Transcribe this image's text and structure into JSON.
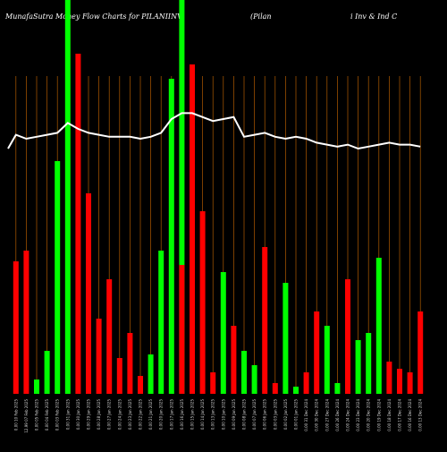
{
  "title_left": "MunafaSutra  Money Flow  Charts for PILANIINV",
  "title_right_1": "(Pilan",
  "title_right_2": "i  Inv   &  Ind  C",
  "colors": {
    "background": "#000000",
    "up": "#00ff00",
    "down": "#ff0000",
    "line": "#ffffff",
    "grid": "#b05a00"
  },
  "chart_data": {
    "type": "bar",
    "series": [
      {
        "values": [
          37,
          40,
          4,
          12,
          65,
          0,
          95,
          56,
          21,
          32,
          10,
          17,
          5,
          11,
          40,
          88,
          36,
          92,
          51,
          6,
          34,
          19,
          12,
          8,
          41,
          3,
          31,
          2,
          6,
          23,
          19,
          3,
          32,
          15,
          17,
          38,
          9,
          7,
          6,
          23
        ],
        "directions": [
          "down",
          "down",
          "up",
          "up",
          "up",
          "up",
          "down",
          "down",
          "down",
          "down",
          "down",
          "down",
          "down",
          "up",
          "up",
          "up",
          "down",
          "down",
          "down",
          "down",
          "up",
          "down",
          "up",
          "up",
          "down",
          "down",
          "up",
          "up",
          "down",
          "down",
          "up",
          "up",
          "down",
          "up",
          "up",
          "up",
          "down",
          "down",
          "down",
          "down"
        ]
      },
      {
        "values": [
          77,
          75,
          76,
          77,
          78,
          83,
          80,
          78,
          77,
          76,
          76,
          76,
          75,
          76,
          78,
          85,
          88,
          88,
          86,
          84,
          85,
          86,
          76,
          77,
          78,
          76,
          75,
          76,
          75,
          73,
          72,
          71,
          72,
          70,
          71,
          72,
          73,
          72,
          72,
          71
        ]
      }
    ],
    "line_leading_point": 70,
    "tick_labels": [
      "0.00 10 Feb 2025",
      "12.99 07 Feb 2025",
      "0.00 05 Feb 2025",
      "0.00 04 Feb 2025",
      "0.00 03 Feb 2025",
      "0.00 31 Jan 2025",
      "0.00 30 Jan 2025",
      "0.00 29 Jan 2025",
      "0.00 28 Jan 2025",
      "0.00 27 Jan 2025",
      "0.00 24 Jan 2025",
      "0.00 23 Jan 2025",
      "0.00 22 Jan 2025",
      "0.00 21 Jan 2025",
      "0.00 20 Jan 2025",
      "0.00 17 Jan 2025",
      "0.00 16 Jan 2025",
      "0.00 15 Jan 2025",
      "0.00 14 Jan 2025",
      "0.00 13 Jan 2025",
      "0.00 10 Jan 2025",
      "0.00 09 Jan 2025",
      "0.00 08 Jan 2025",
      "0.00 07 Jan 2025",
      "0.00 06 Jan 2025",
      "0.00 03 Jan 2025",
      "0.00 02 Jan 2025",
      "0.00 01 Jan 2025",
      "0.00 31 Dec 2024",
      "0.00 30 Dec 2024",
      "0.00 27 Dec 2024",
      "0.00 26 Dec 2024",
      "0.00 24 Dec 2024",
      "0.00 23 Dec 2024",
      "0.00 20 Dec 2024",
      "0.00 19 Dec 2024",
      "0.00 18 Dec 2024",
      "0.00 17 Dec 2024",
      "0.00 16 Dec 2024",
      "0.00 13 Dec 2024"
    ],
    "highlight_bars": [
      5,
      16
    ],
    "grid": true,
    "ylim": [
      0,
      100
    ]
  }
}
